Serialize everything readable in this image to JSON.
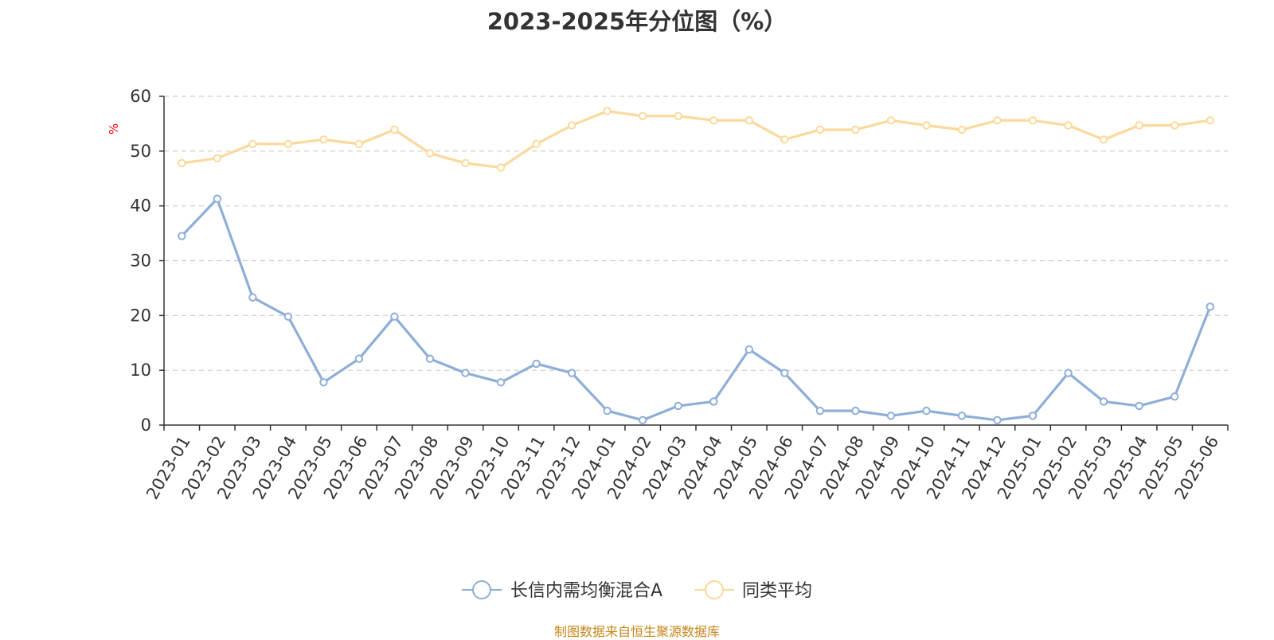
{
  "chart_data": {
    "type": "line",
    "title": "2023-2025年分位图（%）",
    "ylabel": "%",
    "xlabel": "",
    "ylim": [
      0,
      60
    ],
    "yticks": [
      0,
      10,
      20,
      30,
      40,
      50,
      60
    ],
    "grid": true,
    "legend_position": "bottom-center",
    "categories": [
      "2023-01",
      "2023-02",
      "2023-03",
      "2023-04",
      "2023-05",
      "2023-06",
      "2023-07",
      "2023-08",
      "2023-09",
      "2023-10",
      "2023-11",
      "2023-12",
      "2024-01",
      "2024-02",
      "2024-03",
      "2024-04",
      "2024-05",
      "2024-06",
      "2024-07",
      "2024-08",
      "2024-09",
      "2024-10",
      "2024-11",
      "2024-12",
      "2025-01",
      "2025-02",
      "2025-03",
      "2025-04",
      "2025-05",
      "2025-06"
    ],
    "series": [
      {
        "name": "长信内需均衡混合A",
        "color": "#8eaed8",
        "values": [
          34.5,
          41.3,
          23.3,
          19.8,
          7.8,
          12.1,
          19.8,
          12.1,
          9.5,
          7.8,
          11.2,
          9.5,
          2.6,
          0.9,
          3.5,
          4.3,
          13.8,
          9.5,
          2.6,
          2.6,
          1.7,
          2.6,
          1.7,
          0.9,
          1.7,
          9.5,
          4.3,
          3.5,
          5.2,
          21.6
        ]
      },
      {
        "name": "同类平均",
        "color": "#fbd99c",
        "values": [
          47.8,
          48.7,
          51.3,
          51.3,
          52.1,
          51.3,
          53.9,
          49.6,
          47.8,
          47.0,
          51.3,
          54.7,
          57.3,
          56.4,
          56.4,
          55.6,
          55.6,
          52.1,
          53.9,
          53.9,
          55.6,
          54.7,
          53.9,
          55.6,
          55.6,
          54.7,
          52.1,
          54.7,
          54.7,
          55.6
        ]
      }
    ]
  },
  "source_note": "制图数据来自恒生聚源数据库"
}
